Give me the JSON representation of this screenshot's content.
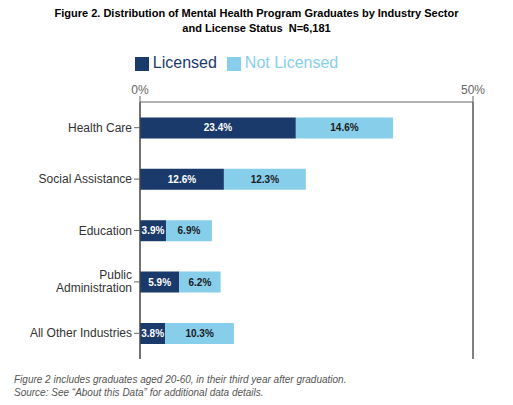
{
  "chart_data": {
    "type": "bar",
    "orientation": "horizontal",
    "stacked": true,
    "title": "Figure 2. Distribution of Mental Health Program Graduates by Industry Sector\nand License Status  N=6,181",
    "categories": [
      "Health Care",
      "Social Assistance",
      "Education",
      "Public\nAdministration",
      "All Other Industries"
    ],
    "series": [
      {
        "name": "Licensed",
        "color": "#1a3a6b",
        "values": [
          23.4,
          12.6,
          3.9,
          5.9,
          3.8
        ],
        "value_labels": [
          "23.4%",
          "12.6%",
          "3.9%",
          "5.9%",
          "3.8%"
        ]
      },
      {
        "name": "Not Licensed",
        "color": "#87ceeb",
        "values": [
          14.6,
          12.3,
          6.9,
          6.2,
          10.3
        ],
        "value_labels": [
          "14.6%",
          "12.3%",
          "6.9%",
          "6.2%",
          "10.3%"
        ]
      }
    ],
    "xlim": [
      0,
      50
    ],
    "xticks": [
      {
        "value": 0,
        "label": "0%"
      },
      {
        "value": 50,
        "label": "50%"
      }
    ],
    "data_labels": true,
    "grid": false,
    "legend": "top",
    "annotations": [
      "Figure 2 includes graduates aged 20-60, in their third year after graduation.",
      "Source: See “About this Data” for additional data details."
    ]
  }
}
